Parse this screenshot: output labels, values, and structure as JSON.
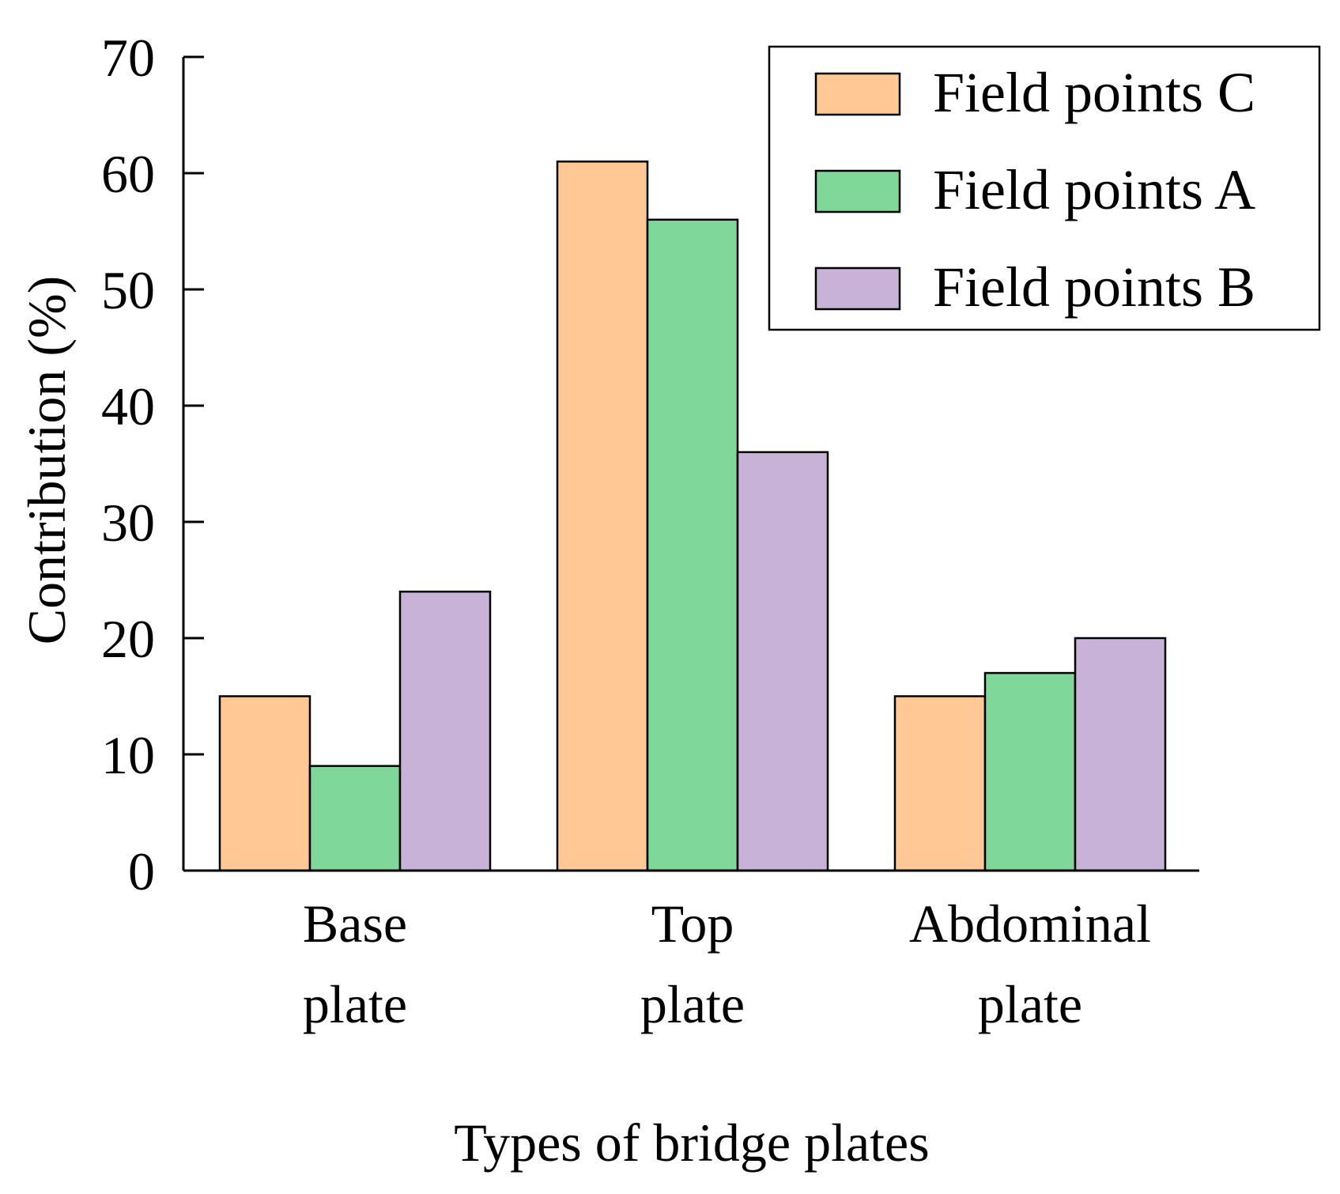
{
  "chart_data": {
    "type": "bar",
    "title": "",
    "xlabel": "Types of bridge plates",
    "ylabel": "Contribution (%)",
    "ylim": [
      0,
      70
    ],
    "yticks": [
      0,
      10,
      20,
      30,
      40,
      50,
      60,
      70
    ],
    "ytick_labels": [
      "0",
      "10",
      "20",
      "30",
      "40",
      "50",
      "60",
      "70"
    ],
    "categories": [
      {
        "line1": "Base",
        "line2": "plate"
      },
      {
        "line1": "Top",
        "line2": "plate"
      },
      {
        "line1": "Abdominal",
        "line2": "plate"
      }
    ],
    "series": [
      {
        "name": "Field points C",
        "color": "#FFC894",
        "values": [
          15,
          61,
          15
        ]
      },
      {
        "name": "Field points A",
        "color": "#7FD899",
        "values": [
          9,
          56,
          17
        ]
      },
      {
        "name": "Field points B",
        "color": "#C8B2D7",
        "values": [
          24,
          36,
          20
        ]
      }
    ],
    "legend_position": "top-right",
    "grid": false
  }
}
